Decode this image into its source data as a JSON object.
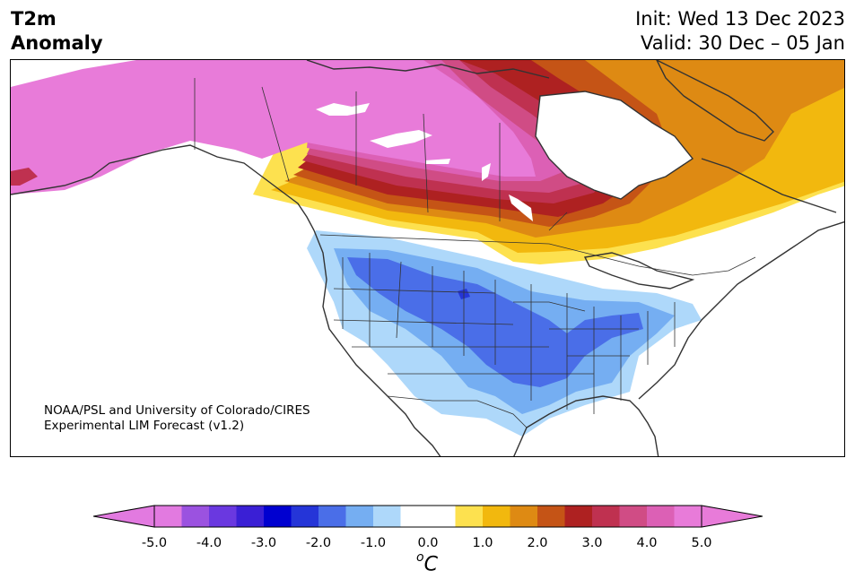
{
  "header": {
    "title_line1": "T2m",
    "title_line2": "Anomaly",
    "init_line": "Init: Wed 13 Dec 2023",
    "valid_line": "Valid: 30 Dec – 05 Jan"
  },
  "credit": {
    "line1": "NOAA/PSL and University of Colorado/CIRES",
    "line2": "Experimental LIM Forecast (v1.2)"
  },
  "colorbar": {
    "unit_base": "C",
    "unit_sup": "o",
    "ticks": [
      "-5.0",
      "-4.0",
      "-3.0",
      "-2.0",
      "-1.0",
      "0.0",
      "1.0",
      "2.0",
      "3.0",
      "4.0",
      "5.0"
    ],
    "colors": [
      "#e27ae0",
      "#9b52e0",
      "#6a38e0",
      "#3a1fd5",
      "#0000d0",
      "#2535d8",
      "#4a6ee8",
      "#75aef2",
      "#aed8fa",
      "#ffffff",
      "#ffffff",
      "#fde14f",
      "#f2b80e",
      "#de8a13",
      "#c55416",
      "#ae2121",
      "#bf3150",
      "#d04c85",
      "#dc60b5",
      "#e87bd9"
    ],
    "under_color": "#e27ae0",
    "over_color": "#e87bd9"
  },
  "map": {
    "land_color": "#ffffff",
    "water_color": "#ffffff",
    "outline_color": "#333333"
  }
}
